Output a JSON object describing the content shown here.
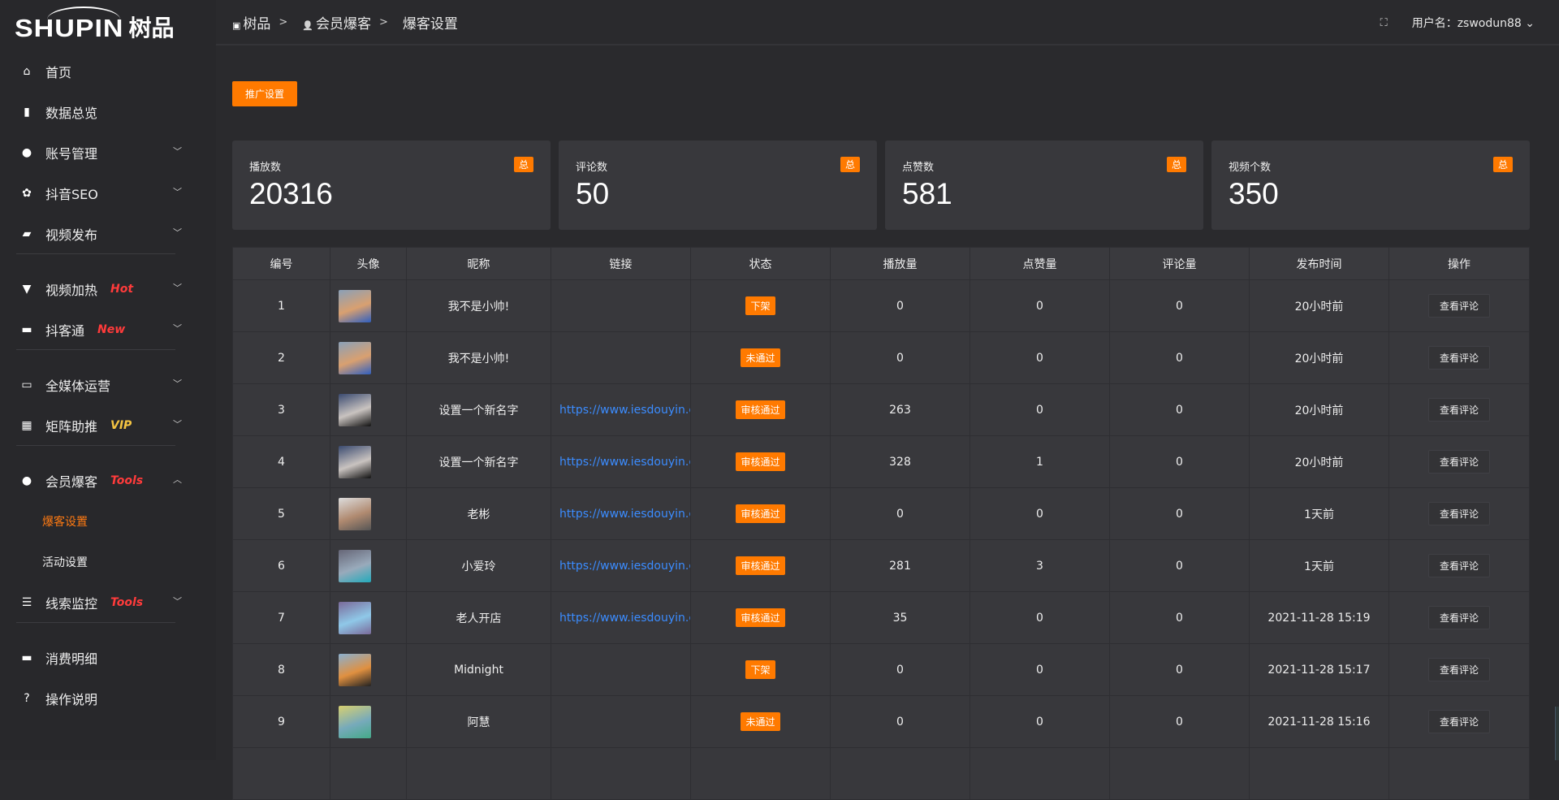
{
  "logo": {
    "en": "SHUPIN",
    "cn": "树品"
  },
  "sidebar": {
    "groups": [
      [
        {
          "label": "首页",
          "icon": "home-icon",
          "glyph": "⌂"
        },
        {
          "label": "数据总览",
          "icon": "bar-chart-icon",
          "glyph": "▮"
        },
        {
          "label": "账号管理",
          "icon": "user-icon",
          "glyph": "●",
          "chevron": "down"
        },
        {
          "label": "抖音SEO",
          "icon": "gear-icon",
          "glyph": "✿",
          "chevron": "down"
        },
        {
          "label": "视频发布",
          "icon": "camera-icon",
          "glyph": "▰",
          "chevron": "down"
        }
      ],
      [
        {
          "label": "视频加热",
          "icon": "flag-icon",
          "glyph": "▼",
          "tag": "Hot",
          "tag_color": "#ff3b3b",
          "chevron": "down"
        },
        {
          "label": "抖客通",
          "icon": "chat-icon",
          "glyph": "▬",
          "tag": "New",
          "tag_color": "#ff3b3b",
          "chevron": "down"
        }
      ],
      [
        {
          "label": "全媒体运营",
          "icon": "monitor-icon",
          "glyph": "▭",
          "chevron": "down"
        },
        {
          "label": "矩阵助推",
          "icon": "grid-icon",
          "glyph": "▦",
          "tag": "VIP",
          "tag_color": "#f5c542",
          "chevron": "down"
        }
      ],
      [
        {
          "label": "会员爆客",
          "icon": "user-icon",
          "glyph": "●",
          "tag": "Tools",
          "tag_color": "#ff3b3b",
          "chevron": "up"
        },
        {
          "label": "爆客设置",
          "sub": true,
          "active": true
        },
        {
          "label": "活动设置",
          "sub": true
        },
        {
          "label": "线索监控",
          "icon": "sliders-icon",
          "glyph": "☰",
          "tag": "Tools",
          "tag_color": "#ff3b3b",
          "chevron": "down"
        }
      ],
      [
        {
          "label": "消费明细",
          "icon": "wallet-icon",
          "glyph": "▬"
        },
        {
          "label": "操作说明",
          "icon": "help-icon",
          "glyph": "?"
        }
      ]
    ]
  },
  "breadcrumb": [
    {
      "label": "树品",
      "icon": "page-icon"
    },
    {
      "label": "会员爆客",
      "icon": "user-icon"
    },
    {
      "label": "爆客设置"
    }
  ],
  "header": {
    "user": "用户名：zswodun88"
  },
  "promo_button": "推广设置",
  "stats": [
    {
      "label": "播放数",
      "value": "20316",
      "badge": "总"
    },
    {
      "label": "评论数",
      "value": "50",
      "badge": "总"
    },
    {
      "label": "点赞数",
      "value": "581",
      "badge": "总"
    },
    {
      "label": "视频个数",
      "value": "350",
      "badge": "总"
    }
  ],
  "table": {
    "columns": [
      "编号",
      "头像",
      "昵称",
      "链接",
      "状态",
      "播放量",
      "点赞量",
      "评论量",
      "发布时间",
      "操作"
    ],
    "action_label": "查看评论",
    "rows": [
      {
        "id": "1",
        "name": "我不是小帅!",
        "link": "",
        "status": "下架",
        "plays": "0",
        "likes": "0",
        "comments": "0",
        "time": "20小时前",
        "avatar": [
          "#8aa0b8",
          "#d9a070",
          "#2f5fc0"
        ]
      },
      {
        "id": "2",
        "name": "我不是小帅!",
        "link": "",
        "status": "未通过",
        "plays": "0",
        "likes": "0",
        "comments": "0",
        "time": "20小时前",
        "avatar": [
          "#8aa0b8",
          "#d9a070",
          "#2f5fc0"
        ]
      },
      {
        "id": "3",
        "name": "设置一个新名字",
        "link": "https://www.iesdouyin.c",
        "status": "审核通过",
        "plays": "263",
        "likes": "0",
        "comments": "0",
        "time": "20小时前",
        "avatar": [
          "#3a4a70",
          "#c9c3c0",
          "#111"
        ]
      },
      {
        "id": "4",
        "name": "设置一个新名字",
        "link": "https://www.iesdouyin.c",
        "status": "审核通过",
        "plays": "328",
        "likes": "1",
        "comments": "0",
        "time": "20小时前",
        "avatar": [
          "#3a4a70",
          "#c9c3c0",
          "#111"
        ]
      },
      {
        "id": "5",
        "name": "老彬",
        "link": "https://www.iesdouyin.c",
        "status": "审核通过",
        "plays": "0",
        "likes": "0",
        "comments": "0",
        "time": "1天前",
        "avatar": [
          "#ddd",
          "#b08a70",
          "#555"
        ]
      },
      {
        "id": "6",
        "name": "小爱玲",
        "link": "https://www.iesdouyin.c",
        "status": "审核通过",
        "plays": "281",
        "likes": "3",
        "comments": "0",
        "time": "1天前",
        "avatar": [
          "#667",
          "#9ab",
          "#2ab"
        ]
      },
      {
        "id": "7",
        "name": "老人开店",
        "link": "https://www.iesdouyin.c",
        "status": "审核通过",
        "plays": "35",
        "likes": "0",
        "comments": "0",
        "time": "2021-11-28 15:19",
        "avatar": [
          "#7a6a9a",
          "#8fc8e8",
          "#7a6a9a"
        ]
      },
      {
        "id": "8",
        "name": "Midnight",
        "link": "",
        "status": "下架",
        "plays": "0",
        "likes": "0",
        "comments": "0",
        "time": "2021-11-28 15:17",
        "avatar": [
          "#8ab0d0",
          "#e09040",
          "#222"
        ]
      },
      {
        "id": "9",
        "name": "阿慧",
        "link": "",
        "status": "未通过",
        "plays": "0",
        "likes": "0",
        "comments": "0",
        "time": "2021-11-28 15:16",
        "avatar": [
          "#d8d070",
          "#7ab",
          "#4a8"
        ]
      }
    ]
  },
  "colors": {
    "accent": "#ff7a00",
    "link": "#3b8cff",
    "bg": "#2a2a2d",
    "card": "#38383c"
  }
}
